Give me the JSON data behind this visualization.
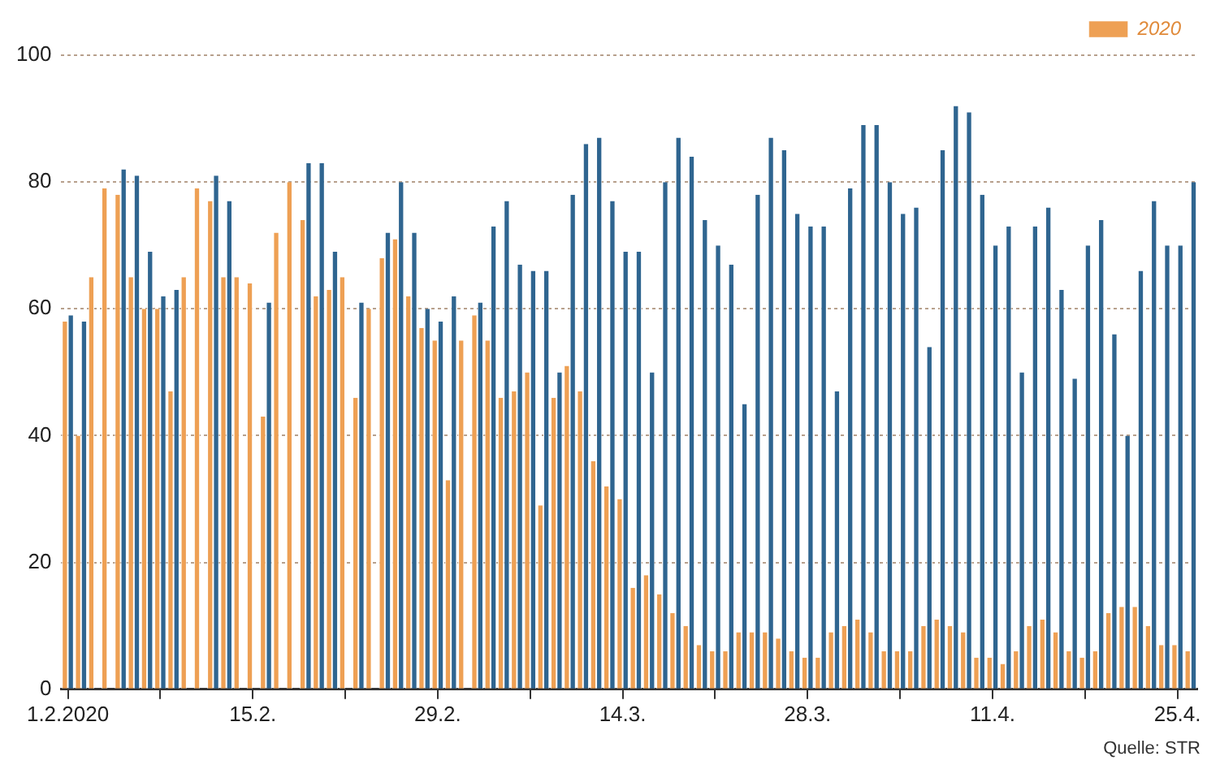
{
  "chart_data": {
    "type": "bar",
    "categories": [
      "1.2.2020",
      null,
      null,
      null,
      null,
      null,
      null,
      null,
      null,
      null,
      null,
      null,
      null,
      null,
      "15.2.",
      null,
      null,
      null,
      null,
      null,
      null,
      null,
      null,
      null,
      null,
      null,
      null,
      null,
      "29.2.",
      null,
      null,
      null,
      null,
      null,
      null,
      null,
      null,
      null,
      null,
      null,
      null,
      null,
      "14.3.",
      null,
      null,
      null,
      null,
      null,
      null,
      null,
      null,
      null,
      null,
      null,
      null,
      null,
      "28.3.",
      null,
      null,
      null,
      null,
      null,
      null,
      null,
      null,
      null,
      null,
      null,
      null,
      null,
      "11.4.",
      null,
      null,
      null,
      null,
      null,
      null,
      null,
      null,
      null,
      null,
      null,
      null,
      null,
      "25.4.",
      null
    ],
    "series": [
      {
        "color": "#2f6590",
        "values": [
          59,
          58,
          null,
          null,
          82,
          81,
          69,
          62,
          63,
          null,
          null,
          81,
          77,
          null,
          null,
          61,
          null,
          null,
          83,
          83,
          69,
          null,
          61,
          null,
          72,
          80,
          72,
          60,
          58,
          62,
          null,
          61,
          73,
          77,
          67,
          66,
          66,
          50,
          78,
          86,
          87,
          77,
          69,
          69,
          50,
          80,
          87,
          84,
          74,
          70,
          67,
          45,
          78,
          87,
          85,
          75,
          73,
          73,
          47,
          79,
          89,
          89,
          80,
          75,
          76,
          54,
          85,
          92,
          91,
          78,
          70,
          73,
          50,
          73,
          76,
          63,
          49,
          70,
          74,
          56,
          40,
          66,
          77,
          70,
          70,
          80
        ]
      },
      {
        "name": "2020",
        "color": "#eea054",
        "values": [
          58,
          40,
          65,
          79,
          78,
          65,
          60,
          60,
          47,
          65,
          79,
          77,
          65,
          65,
          64,
          43,
          72,
          80,
          74,
          62,
          63,
          65,
          46,
          60,
          68,
          71,
          62,
          57,
          55,
          33,
          55,
          59,
          55,
          46,
          47,
          50,
          29,
          46,
          51,
          47,
          36,
          32,
          30,
          16,
          18,
          15,
          12,
          10,
          7,
          6,
          6,
          9,
          9,
          9,
          8,
          6,
          5,
          5,
          9,
          10,
          11,
          9,
          6,
          6,
          6,
          10,
          11,
          10,
          9,
          5,
          5,
          4,
          6,
          10,
          11,
          9,
          6,
          5,
          6,
          12,
          13,
          13,
          10,
          7,
          7,
          6
        ]
      }
    ],
    "ylim": [
      0,
      100
    ],
    "yticks": [
      0,
      20,
      40,
      60,
      80,
      100
    ],
    "grid": "y",
    "legend": "top right",
    "annotations": [
      "Quelle: STR"
    ]
  }
}
